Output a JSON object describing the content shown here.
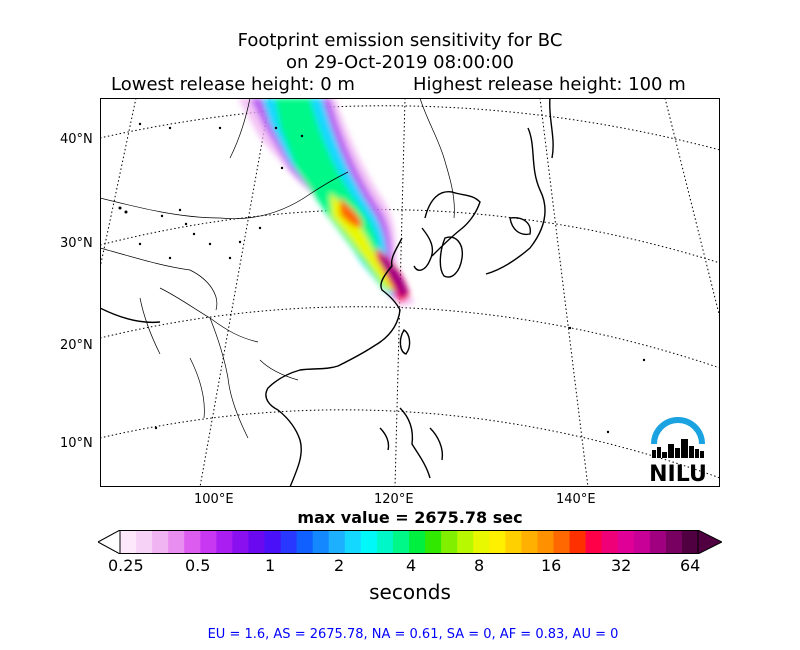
{
  "title": {
    "line1": "Footprint emission sensitivity for BC",
    "line2": "on 29-Oct-2019 08:00:00",
    "lowest": "Lowest release height: 0 m",
    "highest": "Highest release height: 100 m"
  },
  "map": {
    "lat_labels": [
      "40°N",
      "30°N",
      "20°N",
      "10°N"
    ],
    "lon_labels": [
      "100°E",
      "120°E",
      "140°E"
    ],
    "graticule": "dotted",
    "logo_text": "NILU",
    "colors": {
      "logo_arc": "#1aa3e0",
      "logo_text": "#000000"
    }
  },
  "max_value": "max value = 2675.78 sec",
  "colorbar": {
    "ticks": [
      "0.25",
      "0.5",
      "1",
      "2",
      "4",
      "8",
      "16",
      "32",
      "64"
    ],
    "units": "seconds",
    "colors": [
      "#fde8fb",
      "#f7d2f7",
      "#f0b4f2",
      "#e88ef0",
      "#dc5cf0",
      "#c838f2",
      "#aa1ef2",
      "#8a10f0",
      "#6a08f0",
      "#4a10f8",
      "#2838ff",
      "#1060ff",
      "#1488ff",
      "#1cb0ff",
      "#14d8ff",
      "#00f8f8",
      "#00f8c8",
      "#00f888",
      "#00f040",
      "#30e800",
      "#80f000",
      "#b8f800",
      "#e8f800",
      "#fff000",
      "#ffd000",
      "#ffb000",
      "#ff9000",
      "#ff6800",
      "#ff3000",
      "#ff0048",
      "#f00078",
      "#e00098",
      "#c80098",
      "#a00080",
      "#780060",
      "#500040"
    ]
  },
  "footer": "EU = 1.6,  AS = 2675.78,  NA = 0.61,  SA = 0,  AF = 0.83,  AU = 0"
}
